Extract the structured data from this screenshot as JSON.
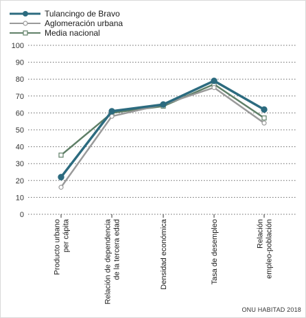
{
  "source_label": "ONU HABITAD 2018",
  "colors": {
    "grid": "#666666",
    "axis": "#333333"
  },
  "chart_data": {
    "type": "line",
    "title": "",
    "xlabel": "",
    "ylabel": "",
    "ylim": [
      0,
      100
    ],
    "yticks": [
      0,
      10,
      20,
      30,
      40,
      50,
      60,
      70,
      80,
      90,
      100
    ],
    "grid": true,
    "legend_position": "top-left",
    "categories": [
      [
        "Producto urbano",
        "per cápita"
      ],
      [
        "Relación de dependencia",
        "de la tercera edad"
      ],
      [
        "Densidad económica"
      ],
      [
        "Tasa de desempleo"
      ],
      [
        "Relación",
        "empleo-población"
      ]
    ],
    "series": [
      {
        "name": "Media nacional",
        "color": "#5f7f67",
        "marker": "square",
        "values": [
          35,
          60,
          64,
          77,
          57
        ]
      },
      {
        "name": "Aglomeración urbana",
        "color": "#9a9a9a",
        "marker": "circle",
        "values": [
          16,
          58,
          65,
          75,
          54
        ]
      },
      {
        "name": "Tulancingo de Bravo",
        "color": "#2c6b7f",
        "marker": "circle",
        "values": [
          22,
          61,
          65,
          79,
          62
        ]
      }
    ],
    "legend_order": [
      "Tulancingo de Bravo",
      "Aglomeración urbana",
      "Media nacional"
    ]
  }
}
